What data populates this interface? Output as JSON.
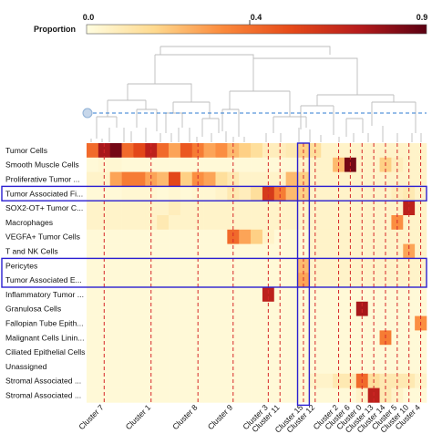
{
  "chart_data": {
    "type": "heatmap",
    "colorbar": {
      "label": "Proportion",
      "ticks": [
        "0.0",
        "0.4",
        "0.9"
      ],
      "min": 0.0,
      "max": 0.9,
      "colors": [
        "#fffde0",
        "#fed98e",
        "#fb8a3c",
        "#e64a19",
        "#b71c1c",
        "#5a0012"
      ]
    },
    "rows": [
      "Tumor Cells",
      "Smooth Muscle Cells",
      "Proliferative Tumor ...",
      "Tumor Associated Fi...",
      "SOX2-OT+ Tumor C...",
      "Macrophages",
      "VEGFA+ Tumor Cells",
      "T and NK Cells",
      "Pericytes",
      "Tumor Associated E...",
      "Inflammatory Tumor ...",
      "Granulosa Cells",
      "Fallopian Tube Epith...",
      "Malignant Cells Linin...",
      "Ciliated Epithelial Cells",
      "Unassigned",
      "Stromal Associated ...",
      "Stromal Associated ..."
    ],
    "column_labels": [
      {
        "label": "Cluster 7",
        "col": 1
      },
      {
        "label": "Cluster 1",
        "col": 5
      },
      {
        "label": "Cluster 8",
        "col": 9
      },
      {
        "label": "Cluster 9",
        "col": 12
      },
      {
        "label": "Cluster 3",
        "col": 15
      },
      {
        "label": "Cluster 11",
        "col": 16
      },
      {
        "label": "Cluster 15",
        "col": 18
      },
      {
        "label": "Cluster 12",
        "col": 19
      },
      {
        "label": "Cluster 2",
        "col": 21
      },
      {
        "label": "Cluster 6",
        "col": 22
      },
      {
        "label": "Cluster 0",
        "col": 23
      },
      {
        "label": "Cluster 13",
        "col": 24
      },
      {
        "label": "Cluster 14",
        "col": 25
      },
      {
        "label": "Cluster 5",
        "col": 26
      },
      {
        "label": "Cluster 10",
        "col": 27
      },
      {
        "label": "Cluster 4",
        "col": 28
      }
    ],
    "values": [
      [
        0.45,
        0.75,
        0.85,
        0.45,
        0.55,
        0.7,
        0.45,
        0.3,
        0.5,
        0.4,
        0.3,
        0.35,
        0.25,
        0.2,
        0.15,
        0.08,
        0.08,
        0.1,
        0.2,
        0.15,
        0.05,
        0.05,
        0.05,
        0.05,
        0.05,
        0.05,
        0.05,
        0.05,
        0.05
      ],
      [
        0.02,
        0.03,
        0.03,
        0.02,
        0.02,
        0.02,
        0.02,
        0.02,
        0.02,
        0.02,
        0.02,
        0.02,
        0.02,
        0.02,
        0.02,
        0.02,
        0.02,
        0.02,
        0.05,
        0.05,
        0.05,
        0.25,
        0.85,
        0.05,
        0.05,
        0.2,
        0.08,
        0.05,
        0.05
      ],
      [
        0.05,
        0.05,
        0.3,
        0.4,
        0.4,
        0.3,
        0.25,
        0.55,
        0.2,
        0.35,
        0.3,
        0.15,
        0.1,
        0.05,
        0.05,
        0.05,
        0.05,
        0.25,
        0.2,
        0.05,
        0.05,
        0.05,
        0.05,
        0.05,
        0.05,
        0.05,
        0.05,
        0.05,
        0.05
      ],
      [
        0.02,
        0.02,
        0.02,
        0.03,
        0.03,
        0.03,
        0.02,
        0.03,
        0.02,
        0.03,
        0.03,
        0.05,
        0.1,
        0.08,
        0.15,
        0.6,
        0.4,
        0.25,
        0.2,
        0.05,
        0.05,
        0.05,
        0.05,
        0.05,
        0.05,
        0.05,
        0.08,
        0.1,
        0.05
      ],
      [
        0.05,
        0.05,
        0.05,
        0.05,
        0.05,
        0.05,
        0.05,
        0.08,
        0.05,
        0.05,
        0.05,
        0.05,
        0.05,
        0.05,
        0.05,
        0.05,
        0.05,
        0.05,
        0.05,
        0.05,
        0.05,
        0.05,
        0.05,
        0.05,
        0.05,
        0.05,
        0.05,
        0.7,
        0.05
      ],
      [
        0.05,
        0.05,
        0.05,
        0.05,
        0.05,
        0.05,
        0.1,
        0.05,
        0.05,
        0.05,
        0.05,
        0.05,
        0.05,
        0.05,
        0.05,
        0.05,
        0.05,
        0.05,
        0.05,
        0.05,
        0.05,
        0.05,
        0.05,
        0.05,
        0.05,
        0.05,
        0.35,
        0.05,
        0.05
      ],
      [
        0.02,
        0.02,
        0.02,
        0.02,
        0.02,
        0.02,
        0.02,
        0.02,
        0.02,
        0.02,
        0.02,
        0.02,
        0.45,
        0.3,
        0.2,
        0.05,
        0.02,
        0.02,
        0.02,
        0.05,
        0.05,
        0.05,
        0.05,
        0.05,
        0.05,
        0.05,
        0.05,
        0.05,
        0.05
      ],
      [
        0.02,
        0.02,
        0.02,
        0.02,
        0.02,
        0.02,
        0.02,
        0.02,
        0.02,
        0.02,
        0.02,
        0.02,
        0.02,
        0.02,
        0.02,
        0.02,
        0.02,
        0.02,
        0.02,
        0.05,
        0.05,
        0.05,
        0.05,
        0.05,
        0.05,
        0.05,
        0.05,
        0.3,
        0.05
      ],
      [
        0.02,
        0.02,
        0.02,
        0.02,
        0.02,
        0.02,
        0.02,
        0.02,
        0.02,
        0.02,
        0.02,
        0.02,
        0.02,
        0.02,
        0.02,
        0.02,
        0.02,
        0.02,
        0.25,
        0.05,
        0.05,
        0.05,
        0.05,
        0.05,
        0.05,
        0.05,
        0.05,
        0.05,
        0.05
      ],
      [
        0.02,
        0.02,
        0.02,
        0.02,
        0.02,
        0.02,
        0.02,
        0.02,
        0.02,
        0.02,
        0.02,
        0.02,
        0.02,
        0.02,
        0.02,
        0.02,
        0.02,
        0.02,
        0.3,
        0.05,
        0.05,
        0.05,
        0.05,
        0.05,
        0.05,
        0.05,
        0.05,
        0.05,
        0.05
      ],
      [
        0.02,
        0.02,
        0.02,
        0.02,
        0.02,
        0.02,
        0.02,
        0.02,
        0.02,
        0.02,
        0.02,
        0.02,
        0.02,
        0.02,
        0.02,
        0.7,
        0.02,
        0.02,
        0.02,
        0.02,
        0.02,
        0.02,
        0.02,
        0.02,
        0.02,
        0.02,
        0.02,
        0.02,
        0.02
      ],
      [
        0.02,
        0.02,
        0.02,
        0.02,
        0.02,
        0.02,
        0.02,
        0.02,
        0.02,
        0.02,
        0.02,
        0.02,
        0.02,
        0.02,
        0.02,
        0.02,
        0.02,
        0.02,
        0.02,
        0.02,
        0.02,
        0.02,
        0.02,
        0.75,
        0.02,
        0.02,
        0.02,
        0.02,
        0.02
      ],
      [
        0.02,
        0.02,
        0.02,
        0.02,
        0.02,
        0.02,
        0.02,
        0.02,
        0.02,
        0.02,
        0.02,
        0.02,
        0.02,
        0.02,
        0.02,
        0.02,
        0.02,
        0.02,
        0.02,
        0.02,
        0.02,
        0.02,
        0.02,
        0.02,
        0.02,
        0.02,
        0.02,
        0.02,
        0.35
      ],
      [
        0.02,
        0.02,
        0.02,
        0.02,
        0.02,
        0.02,
        0.02,
        0.02,
        0.02,
        0.02,
        0.02,
        0.02,
        0.02,
        0.02,
        0.02,
        0.02,
        0.02,
        0.02,
        0.02,
        0.02,
        0.02,
        0.02,
        0.02,
        0.02,
        0.02,
        0.4,
        0.02,
        0.02,
        0.02
      ],
      [
        0.02,
        0.02,
        0.02,
        0.02,
        0.02,
        0.02,
        0.02,
        0.02,
        0.02,
        0.02,
        0.02,
        0.02,
        0.02,
        0.02,
        0.02,
        0.02,
        0.02,
        0.02,
        0.02,
        0.02,
        0.02,
        0.02,
        0.02,
        0.02,
        0.02,
        0.02,
        0.02,
        0.02,
        0.02
      ],
      [
        0.02,
        0.02,
        0.02,
        0.02,
        0.02,
        0.02,
        0.02,
        0.02,
        0.02,
        0.02,
        0.02,
        0.02,
        0.02,
        0.02,
        0.02,
        0.02,
        0.02,
        0.02,
        0.02,
        0.02,
        0.02,
        0.02,
        0.02,
        0.02,
        0.02,
        0.02,
        0.02,
        0.02,
        0.02
      ],
      [
        0.02,
        0.02,
        0.02,
        0.02,
        0.02,
        0.02,
        0.02,
        0.02,
        0.02,
        0.02,
        0.02,
        0.02,
        0.02,
        0.02,
        0.02,
        0.02,
        0.02,
        0.02,
        0.02,
        0.05,
        0.05,
        0.1,
        0.1,
        0.45,
        0.15,
        0.1,
        0.1,
        0.1,
        0.05
      ],
      [
        0.02,
        0.02,
        0.02,
        0.02,
        0.02,
        0.02,
        0.02,
        0.02,
        0.02,
        0.02,
        0.02,
        0.02,
        0.02,
        0.02,
        0.02,
        0.02,
        0.02,
        0.02,
        0.02,
        0.02,
        0.02,
        0.02,
        0.02,
        0.05,
        0.7,
        0.1,
        0.05,
        0.02,
        0.02
      ]
    ],
    "dendrogram_cut_color": "#2e7bd1",
    "highlight_color": "#2b1fd1",
    "highlighted_rows": [
      [
        3,
        3
      ],
      [
        8,
        9
      ]
    ],
    "highlighted_columns": [
      18
    ],
    "guide_line_color": "#d62728"
  }
}
